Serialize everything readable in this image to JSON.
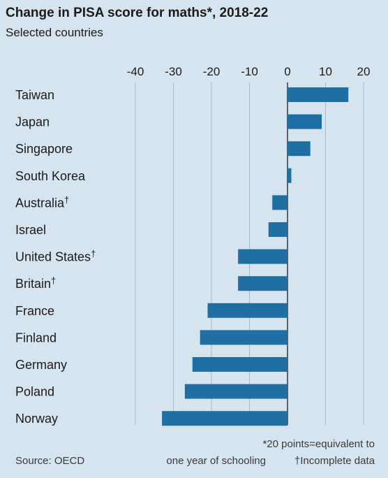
{
  "chart_data": {
    "type": "bar",
    "orientation": "horizontal",
    "title": "Change in PISA score for maths*, 2018-22",
    "subtitle": "Selected countries",
    "categories": [
      "Taiwan",
      "Japan",
      "Singapore",
      "South Korea",
      "Australia",
      "Israel",
      "United States",
      "Britain",
      "France",
      "Finland",
      "Germany",
      "Poland",
      "Norway"
    ],
    "category_marks": [
      "",
      "",
      "",
      "",
      "†",
      "",
      "†",
      "†",
      "",
      "",
      "",
      "",
      ""
    ],
    "values": [
      16,
      9,
      6,
      1,
      -4,
      -5,
      -13,
      -13,
      -21,
      -23,
      -25,
      -27,
      -33
    ],
    "x_ticks": [
      -40,
      -30,
      -20,
      -10,
      0,
      10,
      20
    ],
    "xlim": [
      -42,
      22
    ],
    "grid": true,
    "bar_color": "#1f6fa3",
    "footnote": "*20 points=equivalent to one year of schooling",
    "footnote_line1": "*20 points=equivalent to",
    "footnote_line2": "one year of schooling",
    "footnote2": "†Incomplete data",
    "source": "Source: OECD"
  }
}
